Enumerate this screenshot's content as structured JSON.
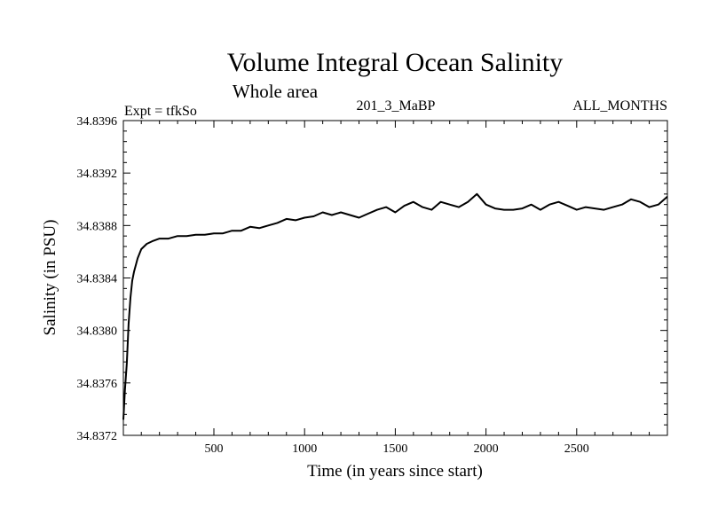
{
  "chart_data": {
    "type": "line",
    "title": "Volume Integral Ocean Salinity",
    "subtitle": "Whole area",
    "annotations": {
      "left": "Expt = tfkSo",
      "center": "201_3_MaBP",
      "right": "ALL_MONTHS"
    },
    "xlabel": "Time (in years since start)",
    "ylabel": "Salinity (in PSU)",
    "xlim": [
      1,
      3000
    ],
    "ylim": [
      34.8372,
      34.8396
    ],
    "x_major_ticks": [
      500,
      1000,
      1500,
      2000,
      2500
    ],
    "x_tick_labels": [
      "500",
      "1000",
      "1500",
      "2000",
      "2500"
    ],
    "y_major_ticks": [
      34.8372,
      34.8376,
      34.838,
      34.8384,
      34.8388,
      34.8392,
      34.8396
    ],
    "y_tick_labels": [
      "34.8372",
      "34.8376",
      "34.8380",
      "34.8384",
      "34.8388",
      "34.8392",
      "34.8396"
    ],
    "grid": false,
    "line_color": "#000000",
    "series": [
      {
        "name": "Salinity",
        "x": [
          1,
          10,
          20,
          30,
          40,
          50,
          60,
          70,
          80,
          100,
          130,
          160,
          200,
          250,
          300,
          350,
          400,
          450,
          500,
          550,
          600,
          650,
          700,
          750,
          800,
          850,
          900,
          950,
          1000,
          1050,
          1100,
          1150,
          1200,
          1250,
          1300,
          1350,
          1400,
          1450,
          1500,
          1550,
          1600,
          1650,
          1700,
          1750,
          1800,
          1850,
          1900,
          1950,
          2000,
          2050,
          2100,
          2150,
          2200,
          2250,
          2300,
          2350,
          2400,
          2450,
          2500,
          2550,
          2600,
          2650,
          2700,
          2750,
          2800,
          2850,
          2900,
          2950,
          3000
        ],
        "values": [
          34.83732,
          34.83755,
          34.83775,
          34.83805,
          34.83825,
          34.83838,
          34.83845,
          34.8385,
          34.83855,
          34.83862,
          34.83866,
          34.83868,
          34.8387,
          34.8387,
          34.83872,
          34.83872,
          34.83873,
          34.83873,
          34.83874,
          34.83874,
          34.83876,
          34.83876,
          34.83879,
          34.83878,
          34.8388,
          34.83882,
          34.83885,
          34.83884,
          34.83886,
          34.83887,
          34.8389,
          34.83888,
          34.8389,
          34.83888,
          34.83886,
          34.83889,
          34.83892,
          34.83894,
          34.8389,
          34.83895,
          34.83898,
          34.83894,
          34.83892,
          34.83898,
          34.83896,
          34.83894,
          34.83898,
          34.83904,
          34.83896,
          34.83893,
          34.83892,
          34.83892,
          34.83893,
          34.83896,
          34.83892,
          34.83896,
          34.83898,
          34.83895,
          34.83892,
          34.83894,
          34.83893,
          34.83892,
          34.83894,
          34.83896,
          34.839,
          34.83898,
          34.83894,
          34.83896,
          34.83902
        ]
      }
    ]
  }
}
